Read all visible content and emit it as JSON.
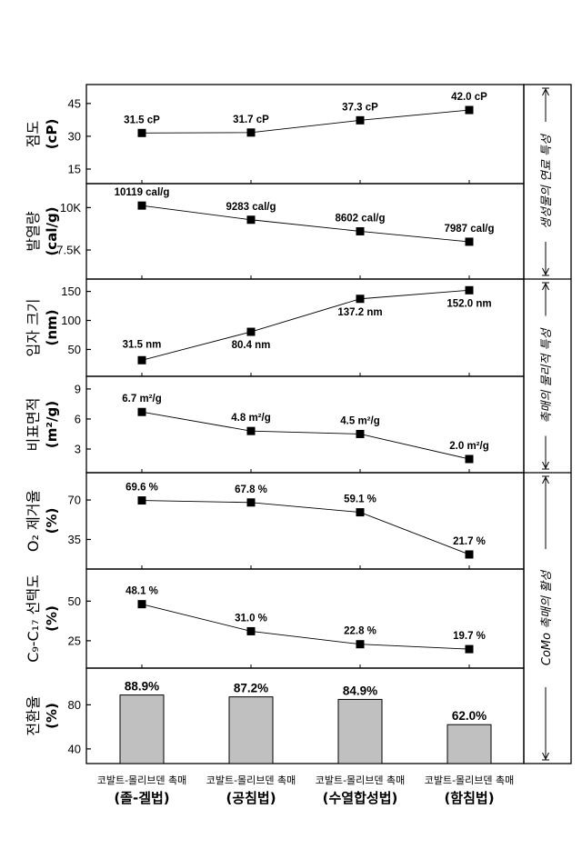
{
  "chart_data": [
    {
      "type": "line",
      "ylabel": [
        "점도",
        "(cP)"
      ],
      "yticks": [
        15,
        30,
        45
      ],
      "ylim": [
        10,
        52
      ],
      "values": [
        31.5,
        31.7,
        37.3,
        42.0
      ],
      "labels": [
        "31.5 cP",
        "31.7 cP",
        "37.3 cP",
        "42.0 cP"
      ]
    },
    {
      "type": "line",
      "ylabel": [
        "발열량",
        "(cal/g)"
      ],
      "yticks": [
        7500,
        10000
      ],
      "ytick_labels": [
        "7.5K",
        "10K"
      ],
      "ylim": [
        6000,
        11200
      ],
      "values": [
        10119,
        9283,
        8602,
        7987
      ],
      "labels": [
        "10119 cal/g",
        "9283 cal/g",
        "8602 cal/g",
        "7987 cal/g"
      ]
    },
    {
      "type": "line",
      "ylabel": [
        "입자 크기",
        "(nm)"
      ],
      "yticks": [
        50,
        100,
        150
      ],
      "ylim": [
        10,
        165
      ],
      "values": [
        31.5,
        80.4,
        137.2,
        152.0
      ],
      "labels": [
        "31.5 nm",
        "80.4 nm",
        "137.2 nm",
        "152.0 nm"
      ]
    },
    {
      "type": "line",
      "ylabel": [
        "비표면적",
        "(m²/g)"
      ],
      "yticks": [
        3,
        6,
        9
      ],
      "ylim": [
        1,
        9.9
      ],
      "values": [
        6.7,
        4.8,
        4.5,
        2.0
      ],
      "labels": [
        "6.7 m²/g",
        "4.8 m²/g",
        "4.5 m²/g",
        "2.0 m²/g"
      ]
    },
    {
      "type": "line",
      "ylabel": [
        "O₂ 제거율",
        "(%)"
      ],
      "yticks": [
        35,
        70
      ],
      "ylim": [
        12,
        91
      ],
      "values": [
        69.6,
        67.8,
        59.1,
        21.7
      ],
      "labels": [
        "69.6 %",
        "67.8 %",
        "59.1 %",
        "21.7 %"
      ]
    },
    {
      "type": "line",
      "ylabel": [
        "C₉-C₁₇ 선택도",
        "(%)"
      ],
      "yticks": [
        25,
        50
      ],
      "ylim": [
        10,
        68
      ],
      "values": [
        48.1,
        31.0,
        22.8,
        19.7
      ],
      "labels": [
        "48.1 %",
        "31.0 %",
        "22.8 %",
        "19.7 %"
      ]
    },
    {
      "type": "bar",
      "ylabel": [
        "전환율",
        "(%)"
      ],
      "yticks": [
        40,
        80
      ],
      "ylim": [
        30,
        110
      ],
      "values": [
        88.9,
        87.2,
        84.9,
        62.0
      ],
      "labels": [
        "88.9%",
        "87.2%",
        "84.9%",
        "62.0%"
      ]
    }
  ],
  "categories": [
    {
      "line1": "코발트-몰리브덴 촉매",
      "line2": "(졸-겔법)"
    },
    {
      "line1": "코발트-몰리브덴 촉매",
      "line2": "(공침법)"
    },
    {
      "line1": "코발트-몰리브덴 촉매",
      "line2": "(수열합성법)"
    },
    {
      "line1": "코발트-몰리브덴 촉매",
      "line2": "(함침법)"
    }
  ],
  "side_labels": [
    "생성물의 연료 특성",
    "촉매의 물리적 특성",
    "CoMo 촉매의 활성"
  ],
  "colors": {
    "bar_fill": "#c0c0c0",
    "line": "#000000"
  }
}
